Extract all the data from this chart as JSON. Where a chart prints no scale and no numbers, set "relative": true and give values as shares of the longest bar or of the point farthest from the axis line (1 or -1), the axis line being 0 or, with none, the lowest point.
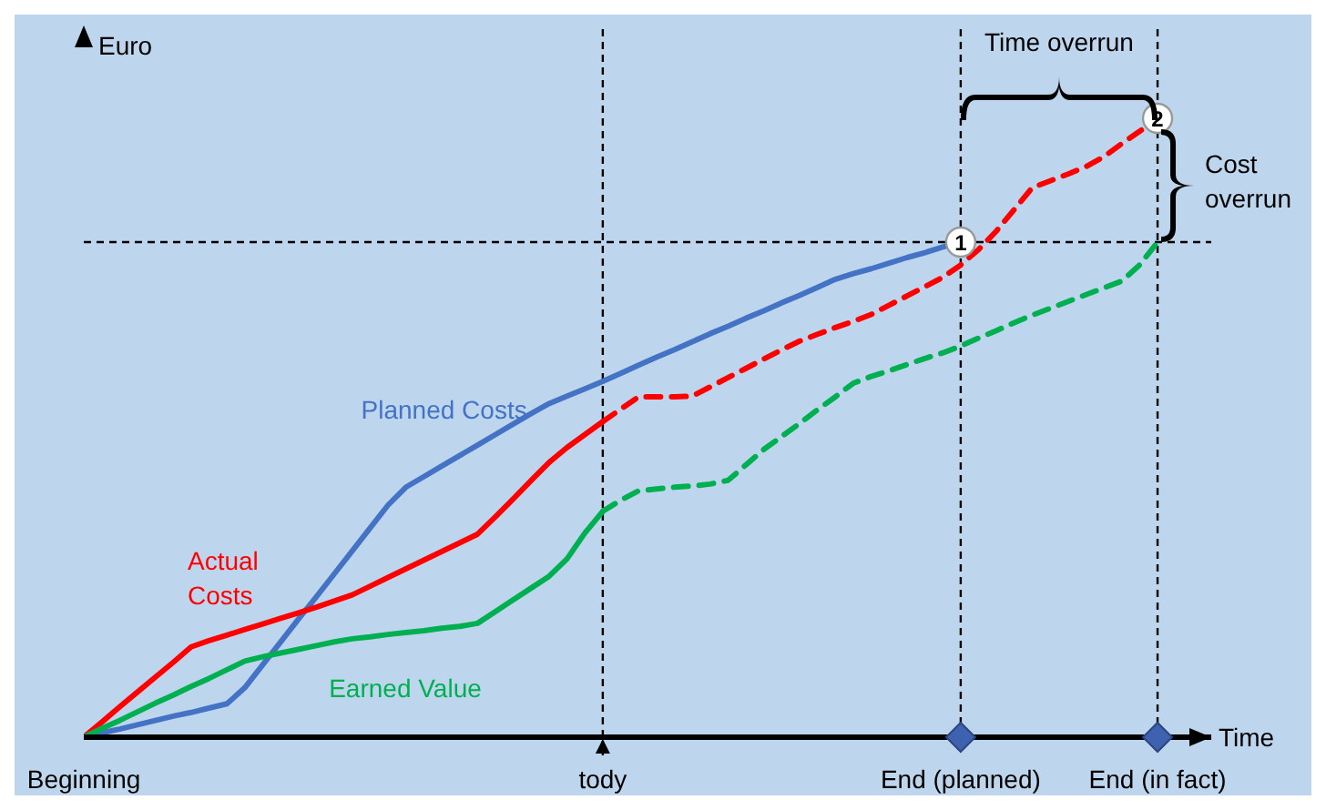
{
  "chart_data": {
    "type": "line",
    "relative": true,
    "ylabel": "Euro",
    "xlabel": "Time",
    "marker": "none",
    "categories": [
      "Beginning",
      null,
      null,
      null,
      null,
      null,
      null,
      null,
      null,
      null,
      null,
      null,
      null,
      null,
      null,
      null,
      null,
      null,
      null,
      null,
      null,
      null,
      null,
      null,
      null,
      null,
      null,
      null,
      null,
      "tody",
      null,
      null,
      null,
      null,
      null,
      null,
      null,
      null,
      null,
      null,
      null,
      null,
      null,
      null,
      null,
      null,
      null,
      null,
      null,
      "End (planned)",
      null,
      null,
      null,
      null,
      null,
      null,
      null,
      null,
      null,
      null,
      "End (in fact)",
      null,
      null,
      null
    ],
    "series": [
      {
        "name": "Planned Costs",
        "color": "#4472c4",
        "values": [
          0,
          0.007,
          0.013,
          0.02,
          0.027,
          0.034,
          0.04,
          0.047,
          0.054,
          0.08,
          0.117,
          0.154,
          0.191,
          0.227,
          0.264,
          0.301,
          0.338,
          0.375,
          0.404,
          0.421,
          0.438,
          0.455,
          0.472,
          0.489,
          0.506,
          0.523,
          0.539,
          0.551,
          0.563,
          0.575,
          0.588,
          0.601,
          0.614,
          0.626,
          0.639,
          0.652,
          0.664,
          0.677,
          0.689,
          0.702,
          0.714,
          0.727,
          0.74,
          0.749,
          0.757,
          0.766,
          0.775,
          0.783,
          0.792,
          0.8,
          null,
          null,
          null,
          null,
          null,
          null,
          null,
          null,
          null,
          null,
          null,
          null,
          null,
          null
        ]
      },
      {
        "name": "Actual Costs",
        "color": "#ff0000",
        "values": [
          0,
          0.024,
          0.049,
          0.073,
          0.097,
          0.121,
          0.146,
          0.156,
          0.165,
          0.174,
          0.183,
          0.192,
          0.201,
          0.21,
          0.22,
          0.23,
          0.244,
          0.258,
          0.272,
          0.286,
          0.3,
          0.314,
          0.328,
          0.356,
          0.385,
          0.415,
          0.444,
          0.468,
          0.489,
          0.51,
          null,
          null,
          null,
          null,
          null,
          null,
          null,
          null,
          null,
          null,
          null,
          null,
          null,
          null,
          null,
          null,
          null,
          null,
          null,
          null,
          null,
          null,
          null,
          null,
          null,
          null,
          null,
          null,
          null,
          null,
          null,
          null,
          null,
          null
        ]
      },
      {
        "color": "#ff0000",
        "line_style": "dashed",
        "values": [
          null,
          null,
          null,
          null,
          null,
          null,
          null,
          null,
          null,
          null,
          null,
          null,
          null,
          null,
          null,
          null,
          null,
          null,
          null,
          null,
          null,
          null,
          null,
          null,
          null,
          null,
          null,
          null,
          null,
          0.51,
          0.53,
          0.55,
          0.55,
          0.55,
          0.551,
          0.566,
          0.581,
          0.596,
          0.611,
          0.626,
          0.64,
          0.651,
          0.662,
          0.672,
          0.683,
          0.698,
          0.713,
          0.728,
          0.743,
          0.763,
          0.788,
          0.818,
          0.853,
          0.888,
          0.899,
          0.91,
          0.922,
          0.938,
          0.959,
          0.979,
          1,
          null,
          null,
          null
        ]
      },
      {
        "name": "Earned Value",
        "color": "#00b050",
        "values": [
          0,
          0.014,
          0.027,
          0.041,
          0.055,
          0.068,
          0.082,
          0.095,
          0.109,
          0.123,
          0.13,
          0.136,
          0.142,
          0.148,
          0.154,
          0.159,
          0.162,
          0.166,
          0.169,
          0.172,
          0.176,
          0.179,
          0.184,
          0.203,
          0.222,
          0.241,
          0.26,
          0.288,
          0.33,
          0.365,
          null,
          null,
          null,
          null,
          null,
          null,
          null,
          null,
          null,
          null,
          null,
          null,
          null,
          null,
          null,
          null,
          null,
          null,
          null,
          null,
          null,
          null,
          null,
          null,
          null,
          null,
          null,
          null,
          null,
          null,
          null,
          null,
          null,
          null
        ]
      },
      {
        "color": "#00b050",
        "line_style": "dashed",
        "values": [
          null,
          null,
          null,
          null,
          null,
          null,
          null,
          null,
          null,
          null,
          null,
          null,
          null,
          null,
          null,
          null,
          null,
          null,
          null,
          null,
          null,
          null,
          null,
          null,
          null,
          null,
          null,
          null,
          null,
          0.365,
          0.383,
          0.398,
          0.401,
          0.404,
          0.406,
          0.409,
          0.415,
          0.44,
          0.465,
          0.486,
          0.507,
          0.529,
          0.55,
          0.572,
          0.583,
          0.592,
          0.602,
          0.612,
          0.621,
          0.632,
          0.645,
          0.657,
          0.67,
          0.682,
          0.693,
          0.704,
          0.715,
          0.726,
          0.737,
          0.763,
          0.8,
          null,
          null,
          null
        ]
      }
    ],
    "ref_lines": [
      {
        "axis": "x",
        "value": "tody"
      },
      {
        "axis": "x",
        "value": "End (planned)"
      },
      {
        "axis": "x",
        "value": "End (in fact)"
      },
      {
        "axis": "y",
        "value": 0.8
      }
    ],
    "annotations": [
      {
        "text": "1",
        "x": "End (planned)",
        "y": 0.8
      },
      {
        "text": "2",
        "x": "End (in fact)",
        "y": 1
      },
      "Time overrun",
      "Cost overrun"
    ]
  }
}
